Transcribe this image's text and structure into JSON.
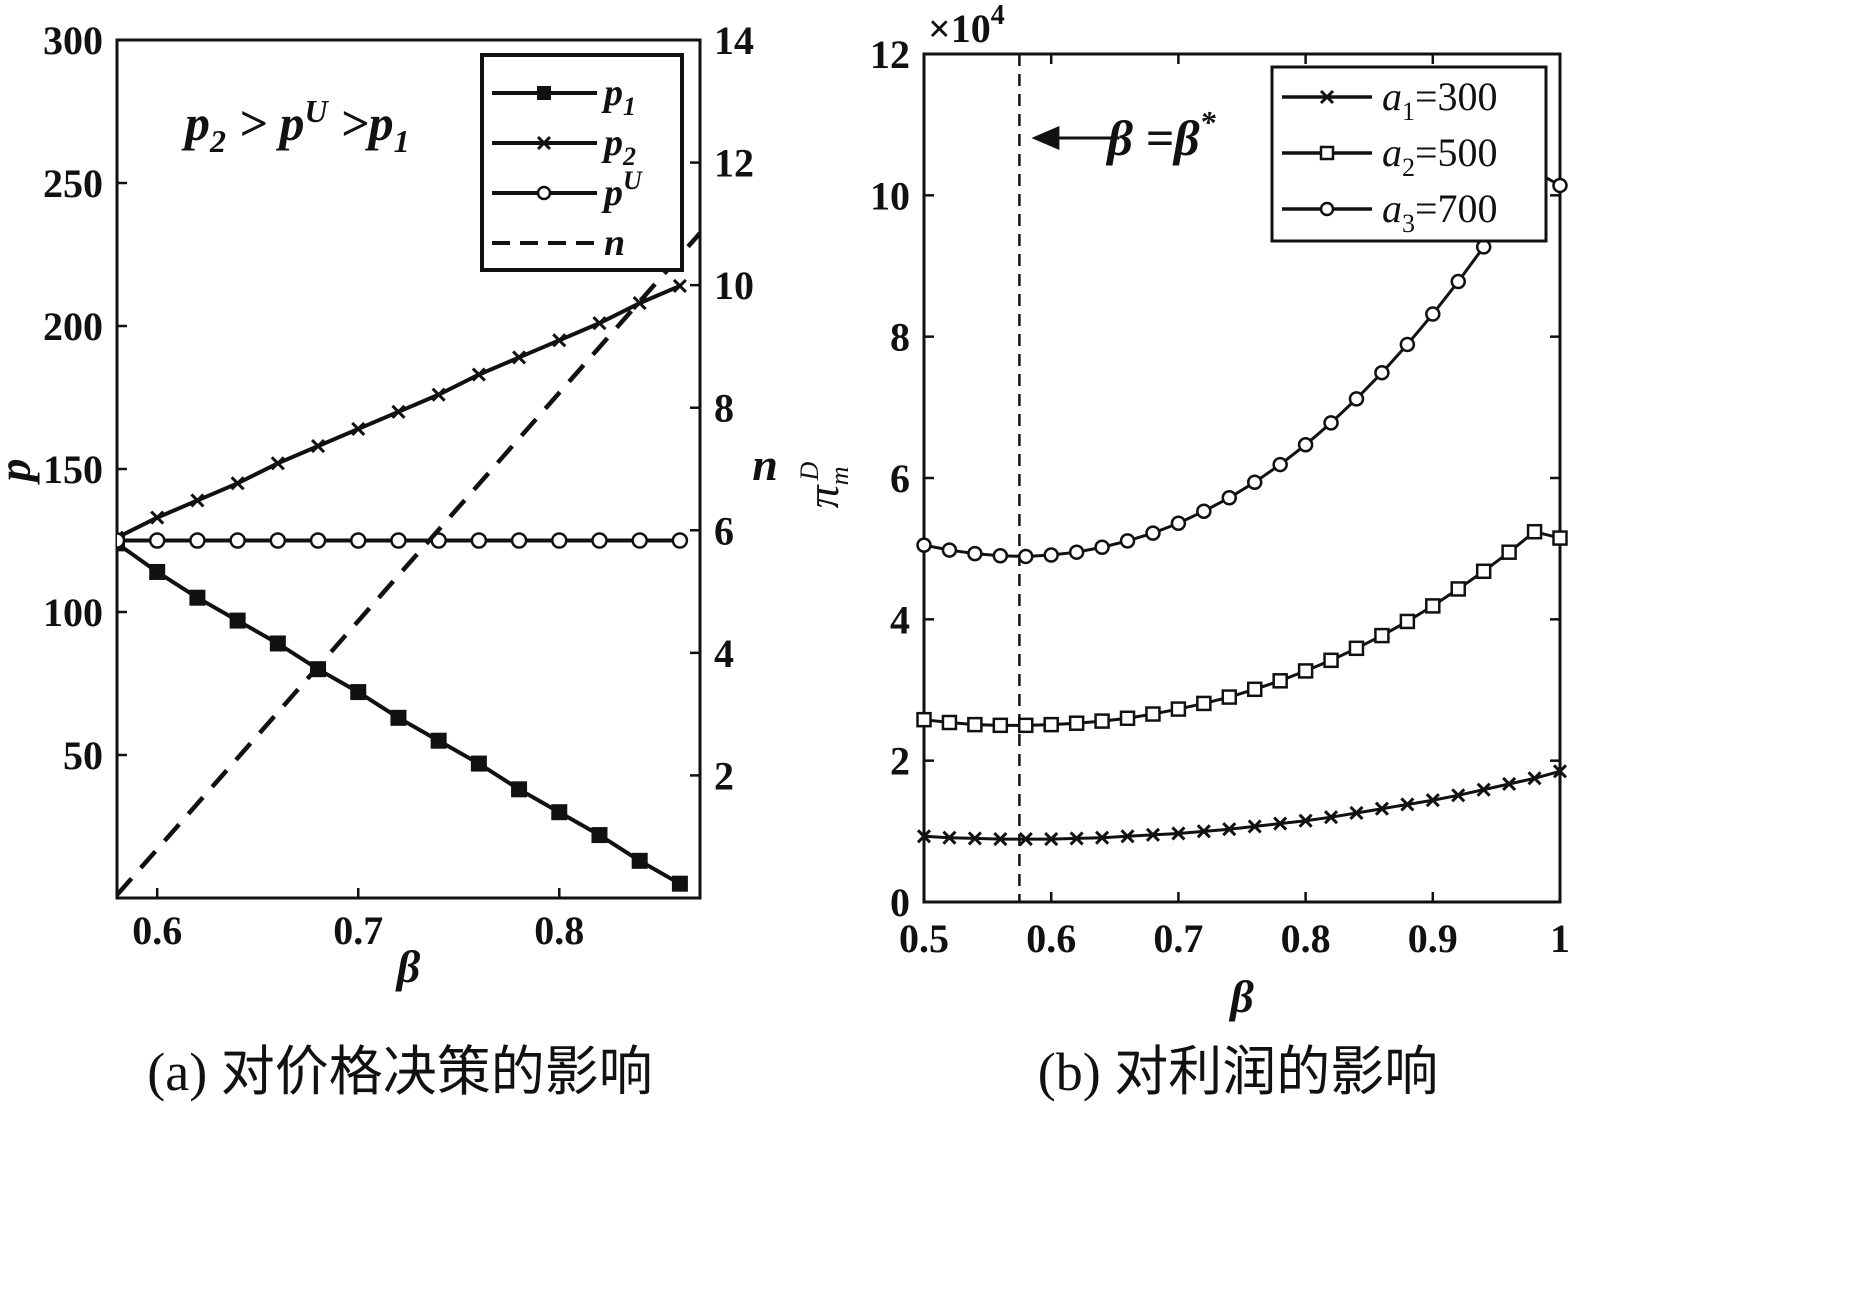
{
  "chart_data": [
    {
      "type": "line",
      "caption": "(a) 对价格决策的影响",
      "xlabel": "β",
      "ylabel": "p",
      "y2label": "n",
      "xlim": [
        0.58,
        0.87
      ],
      "ylim": [
        0,
        300
      ],
      "y2lim": [
        0,
        14
      ],
      "xticks": [
        "0.6",
        "0.7",
        "0.8"
      ],
      "yticks": [
        "50",
        "100",
        "150",
        "200",
        "250",
        "300"
      ],
      "y2ticks": [
        "2",
        "4",
        "6",
        "8",
        "10",
        "12",
        "14"
      ],
      "annotation": "p2 > pU >p1",
      "grid": false,
      "legend_position": "top-right",
      "x": [
        0.58,
        0.6,
        0.62,
        0.64,
        0.66,
        0.68,
        0.7,
        0.72,
        0.74,
        0.76,
        0.78,
        0.8,
        0.82,
        0.84,
        0.86
      ],
      "series": [
        {
          "name": "p1",
          "marker": "square",
          "axis": "left",
          "values": [
            124,
            114,
            105,
            97,
            89,
            80,
            72,
            63,
            55,
            47,
            38,
            30,
            22,
            13,
            5
          ]
        },
        {
          "name": "p2",
          "marker": "x",
          "axis": "left",
          "values": [
            126,
            133,
            139,
            145,
            152,
            158,
            164,
            170,
            176,
            183,
            189,
            195,
            201,
            208,
            214
          ]
        },
        {
          "name": "pU",
          "marker": "circle",
          "axis": "left",
          "values": [
            125,
            125,
            125,
            125,
            125,
            125,
            125,
            125,
            125,
            125,
            125,
            125,
            125,
            125,
            125
          ]
        },
        {
          "name": "n",
          "marker": "none",
          "dashed": true,
          "axis": "right",
          "x": [
            0.58,
            0.87
          ],
          "values": [
            0.05,
            10.85
          ]
        }
      ]
    },
    {
      "type": "line",
      "caption": "(b) 对利润的影响",
      "xlabel": "β",
      "ylabel": "π_m^D",
      "ylabel_parts": {
        "base": "π",
        "sup": "D",
        "sub": "m"
      },
      "y_multiplier": "×10^4",
      "y_multiplier_parts": {
        "base": "×10",
        "exp": "4"
      },
      "xlim": [
        0.5,
        1
      ],
      "ylim": [
        0,
        12
      ],
      "xticks": [
        "0.5",
        "0.6",
        "0.7",
        "0.8",
        "0.9",
        "1"
      ],
      "yticks": [
        "0",
        "2",
        "4",
        "6",
        "8",
        "10",
        "12"
      ],
      "grid": false,
      "legend_position": "top-right",
      "vline": {
        "x": 0.575,
        "label": "β =β*",
        "label_parts": {
          "base": "β =β",
          "sup": "*"
        }
      },
      "x": [
        0.5,
        0.52,
        0.54,
        0.56,
        0.58,
        0.6,
        0.62,
        0.64,
        0.66,
        0.68,
        0.7,
        0.72,
        0.74,
        0.76,
        0.78,
        0.8,
        0.82,
        0.84,
        0.86,
        0.88,
        0.9,
        0.92,
        0.94,
        0.96,
        0.98,
        1.0
      ],
      "series": [
        {
          "name": "a1=300",
          "name_parts": {
            "base": "a",
            "sub": "1",
            "rest": "=300"
          },
          "marker": "x",
          "values": [
            0.93,
            0.91,
            0.9,
            0.89,
            0.89,
            0.89,
            0.9,
            0.91,
            0.93,
            0.95,
            0.97,
            1.0,
            1.03,
            1.07,
            1.11,
            1.15,
            1.2,
            1.26,
            1.32,
            1.38,
            1.44,
            1.51,
            1.59,
            1.67,
            1.75,
            1.85
          ]
        },
        {
          "name": "a2=500",
          "name_parts": {
            "base": "a",
            "sub": "2",
            "rest": "=500"
          },
          "marker": "square",
          "values": [
            2.58,
            2.54,
            2.51,
            2.5,
            2.5,
            2.51,
            2.53,
            2.56,
            2.6,
            2.66,
            2.73,
            2.81,
            2.9,
            3.01,
            3.13,
            3.27,
            3.42,
            3.59,
            3.77,
            3.97,
            4.19,
            4.43,
            4.68,
            4.95,
            5.24,
            5.15
          ]
        },
        {
          "name": "a3=700",
          "name_parts": {
            "base": "a",
            "sub": "3",
            "rest": "=700"
          },
          "marker": "circle",
          "values": [
            5.05,
            4.98,
            4.93,
            4.9,
            4.89,
            4.91,
            4.95,
            5.02,
            5.11,
            5.22,
            5.36,
            5.53,
            5.72,
            5.94,
            6.19,
            6.47,
            6.78,
            7.12,
            7.49,
            7.89,
            8.32,
            8.78,
            9.27,
            9.79,
            10.34,
            10.14
          ]
        }
      ]
    }
  ]
}
